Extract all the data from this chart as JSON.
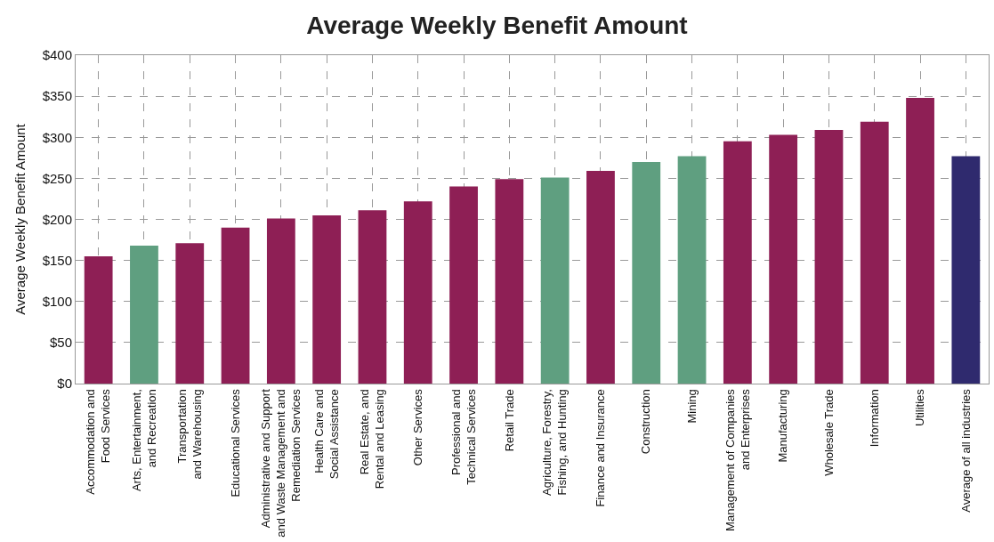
{
  "chart_data": {
    "type": "bar",
    "title": "Average Weekly Benefit Amount",
    "ylabel": "Average Weekly Benefit Amount",
    "categories": [
      "Accommodation and\nFood Services",
      "Arts, Entertainment,\nand Recreation",
      "Transportation\nand Warehousing",
      "Educational Services",
      "Administrative and Support\nand Waste Management and\nRemediation Services",
      "Health Care and\nSocial Assistance",
      "Real Estate, and\nRental and Leasing",
      "Other Services",
      "Professional and\nTechnical Services",
      "Retail Trade",
      "Agriculture, Forestry,\nFishing, and Hunting",
      "Finance and Insurance",
      "Construction",
      "Mining",
      "Management of Companies\nand Enterprises",
      "Manufacturing",
      "Wholesale Trade",
      "Information",
      "Utilities",
      "Average of all industries"
    ],
    "values": [
      155,
      168,
      171,
      190,
      201,
      205,
      211,
      222,
      240,
      249,
      251,
      259,
      270,
      277,
      295,
      303,
      309,
      319,
      348,
      277
    ],
    "colors": [
      "#8e1f55",
      "#5f9f80",
      "#8e1f55",
      "#8e1f55",
      "#8e1f55",
      "#8e1f55",
      "#8e1f55",
      "#8e1f55",
      "#8e1f55",
      "#8e1f55",
      "#5f9f80",
      "#8e1f55",
      "#5f9f80",
      "#5f9f80",
      "#8e1f55",
      "#8e1f55",
      "#8e1f55",
      "#8e1f55",
      "#8e1f55",
      "#2f2a6e"
    ],
    "ylim": [
      0,
      400
    ],
    "yticks": [
      {
        "value": 0,
        "label": "$0"
      },
      {
        "value": 50,
        "label": "$50"
      },
      {
        "value": 100,
        "label": "$100"
      },
      {
        "value": 150,
        "label": "$150"
      },
      {
        "value": 200,
        "label": "$200"
      },
      {
        "value": 250,
        "label": "$250"
      },
      {
        "value": 300,
        "label": "$300"
      },
      {
        "value": 350,
        "label": "$350"
      },
      {
        "value": 400,
        "label": "$400"
      }
    ],
    "grid": true
  }
}
